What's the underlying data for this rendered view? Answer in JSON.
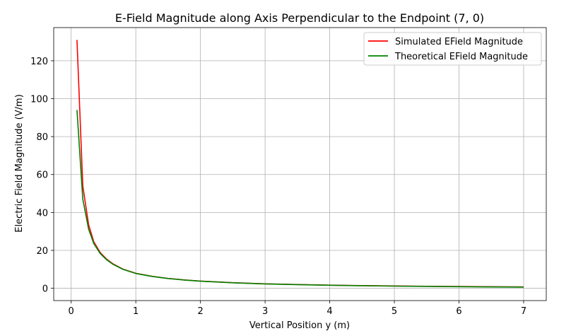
{
  "chart_data": {
    "type": "line",
    "title": "E-Field Magnitude along Axis Perpendicular to the Endpoint (7, 0)",
    "xlabel": "Vertical Position y (m)",
    "ylabel": "Electric Field Magnitude (V/m)",
    "xlim": [
      -0.27,
      7.35
    ],
    "ylim": [
      -6.5,
      137.5
    ],
    "xticks": [
      0,
      1,
      2,
      3,
      4,
      5,
      6,
      7
    ],
    "yticks": [
      0,
      20,
      40,
      60,
      80,
      100,
      120
    ],
    "grid": true,
    "legend_position": "top-right",
    "series": [
      {
        "name": "Simulated EField Magnitude",
        "color": "#ff0000",
        "x": [
          0.09,
          0.18,
          0.27,
          0.35,
          0.45,
          0.55,
          0.65,
          0.8,
          1.0,
          1.25,
          1.5,
          1.75,
          2.0,
          2.5,
          3.0,
          3.5,
          4.0,
          4.5,
          5.0,
          5.5,
          6.0,
          6.5,
          7.0
        ],
        "y": [
          131,
          54,
          33.5,
          24.5,
          18.8,
          15.3,
          12.8,
          10.1,
          7.9,
          6.3,
          5.2,
          4.4,
          3.8,
          2.95,
          2.35,
          1.95,
          1.65,
          1.4,
          1.2,
          1.05,
          0.92,
          0.8,
          0.7
        ]
      },
      {
        "name": "Theoretical EField Magnitude",
        "color": "#008000",
        "x": [
          0.09,
          0.18,
          0.27,
          0.35,
          0.45,
          0.55,
          0.65,
          0.8,
          1.0,
          1.25,
          1.5,
          1.75,
          2.0,
          2.5,
          3.0,
          3.5,
          4.0,
          4.5,
          5.0,
          5.5,
          6.0,
          6.5,
          7.0
        ],
        "y": [
          94,
          47,
          31.2,
          23.6,
          18.3,
          15.0,
          12.6,
          10.0,
          7.8,
          6.25,
          5.15,
          4.35,
          3.75,
          2.9,
          2.3,
          1.9,
          1.6,
          1.35,
          1.15,
          0.98,
          0.84,
          0.72,
          0.6
        ]
      }
    ]
  }
}
